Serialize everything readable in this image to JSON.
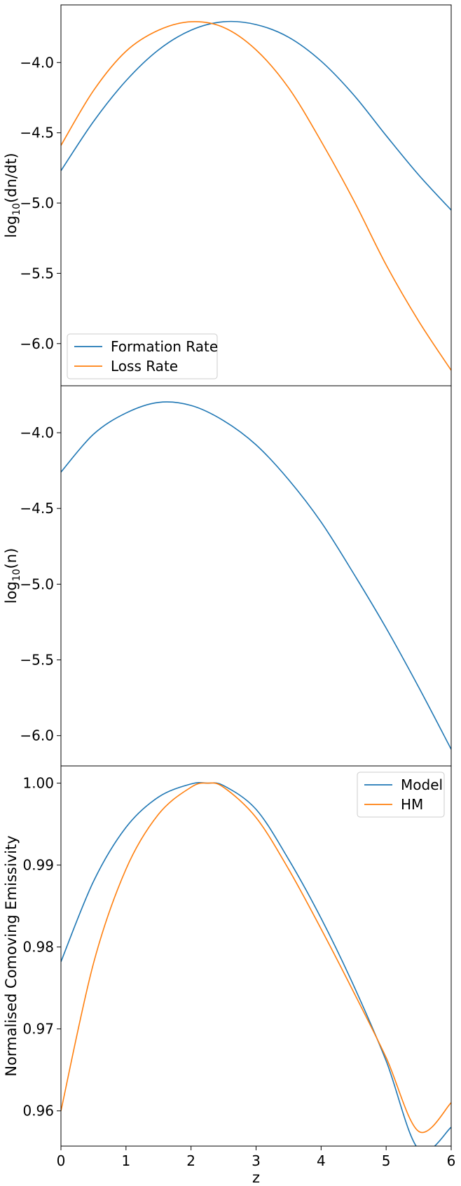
{
  "chart_data": [
    {
      "type": "line",
      "ylabel": "log10(dn/dt)",
      "ylabel_parts": {
        "prefix": "log",
        "sub": "10",
        "suffix": "(dn/dt)"
      },
      "xlim": [
        0,
        6
      ],
      "ylim": [
        -6.3,
        -3.59
      ],
      "yticks": [
        -6.0,
        -5.5,
        -5.0,
        -4.5,
        -4.0
      ],
      "ytick_labels": [
        "−6.0",
        "−5.5",
        "−5.0",
        "−4.5",
        "−4.0"
      ],
      "x": [
        0,
        0.5,
        1,
        1.5,
        2,
        2.5,
        3,
        3.5,
        4,
        4.5,
        5,
        5.5,
        6
      ],
      "series": [
        {
          "name": "Formation Rate",
          "color": "#1f77b4",
          "values": [
            -4.77,
            -4.42,
            -4.13,
            -3.91,
            -3.77,
            -3.71,
            -3.73,
            -3.82,
            -3.99,
            -4.23,
            -4.52,
            -4.8,
            -5.05
          ]
        },
        {
          "name": "Loss Rate",
          "color": "#ff7f0e",
          "values": [
            -4.59,
            -4.2,
            -3.92,
            -3.77,
            -3.71,
            -3.75,
            -3.91,
            -4.18,
            -4.56,
            -4.98,
            -5.44,
            -5.84,
            -6.19
          ]
        }
      ],
      "legend": {
        "loc": "lower-left"
      },
      "grid": false
    },
    {
      "type": "line",
      "ylabel": "log10(n)",
      "ylabel_parts": {
        "prefix": "log",
        "sub": "10",
        "suffix": "(n)"
      },
      "xlim": [
        0,
        6
      ],
      "ylim": [
        -6.2,
        -3.69
      ],
      "yticks": [
        -6.0,
        -5.5,
        -5.0,
        -4.5,
        -4.0
      ],
      "ytick_labels": [
        "−6.0",
        "−5.5",
        "−5.0",
        "−4.5",
        "−4.0"
      ],
      "x": [
        0,
        0.5,
        1,
        1.5,
        2,
        2.5,
        3,
        3.5,
        4,
        4.5,
        5,
        5.5,
        6
      ],
      "series": [
        {
          "name": "",
          "color": "#1f77b4",
          "values": [
            -4.26,
            -4.01,
            -3.87,
            -3.8,
            -3.82,
            -3.92,
            -4.08,
            -4.31,
            -4.59,
            -4.93,
            -5.29,
            -5.68,
            -6.09
          ]
        }
      ],
      "grid": false
    },
    {
      "type": "line",
      "xlabel": "z",
      "ylabel": "Normalised Comoving Emissivity",
      "xlim": [
        0,
        6
      ],
      "ylim": [
        0.9557,
        1.0021
      ],
      "xticks": [
        0,
        1,
        2,
        3,
        4,
        5,
        6
      ],
      "xtick_labels": [
        "0",
        "1",
        "2",
        "3",
        "4",
        "5",
        "6"
      ],
      "yticks": [
        0.96,
        0.97,
        0.98,
        0.99,
        1.0
      ],
      "ytick_labels": [
        "0.96",
        "0.97",
        "0.98",
        "0.99",
        "1.00"
      ],
      "x": [
        0,
        0.5,
        1,
        1.5,
        2,
        2.25,
        2.5,
        3,
        3.5,
        4,
        4.5,
        5,
        5.5,
        6
      ],
      "series": [
        {
          "name": "Model",
          "color": "#1f77b4",
          "values": [
            0.9782,
            0.988,
            0.9946,
            0.9983,
            0.9999,
            1.0,
            0.9997,
            0.9968,
            0.9907,
            0.9835,
            0.9753,
            0.9661,
            0.9553,
            0.958
          ]
        },
        {
          "name": "HM",
          "color": "#ff7f0e",
          "values": [
            0.96,
            0.978,
            0.9895,
            0.9962,
            0.9995,
            1.0,
            0.9995,
            0.9958,
            0.9895,
            0.9822,
            0.9745,
            0.9665,
            0.9575,
            0.961
          ]
        }
      ],
      "legend": {
        "loc": "upper-right"
      },
      "grid": false
    }
  ]
}
